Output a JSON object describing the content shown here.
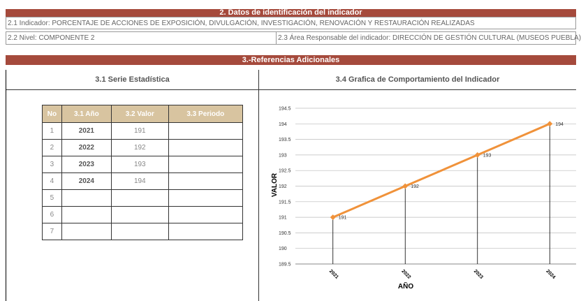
{
  "section2": {
    "title": "2. Datos de identificación del indicador",
    "indicator": "2.1 Indicador: PORCENTAJE DE ACCIONES DE EXPOSICIÓN, DIVULGACIÓN, INVESTIGACIÓN, RENOVACIÓN Y RESTAURACIÓN REALIZADAS",
    "level": "2.2 Nivel: COMPONENTE 2",
    "area": "2.3 Área Responsable del indicador: DIRECCIÓN DE GESTIÓN CULTURAL (MUSEOS PUEBLA)"
  },
  "section3": {
    "title": "3.-Referencias Adicionales",
    "left_title": "3.1 Serie Estadística",
    "right_title": "3.4 Grafica de Comportamiento del Indicador"
  },
  "table": {
    "headers": [
      "No",
      "3.1 Año",
      "3.2 Valor",
      "3.3 Periodo"
    ],
    "rows": [
      [
        "1",
        "2021",
        "191"
      ],
      [
        "2",
        "2022",
        "192"
      ],
      [
        "3",
        "2023",
        "193"
      ],
      [
        "4",
        "2024",
        "194"
      ],
      [
        "5"
      ],
      [
        "6"
      ],
      [
        "7"
      ]
    ]
  },
  "chart": {
    "type": "line",
    "x_label": "AÑO",
    "y_label": "VALOR",
    "categories": [
      "2021",
      "2022",
      "2023",
      "2024"
    ],
    "series": [
      {
        "color": "#f0923a",
        "values": [
          191,
          192,
          193,
          194
        ]
      }
    ],
    "ylim": [
      189.5,
      194.5
    ],
    "yticks": [
      189.5,
      190,
      190.5,
      191,
      191.5,
      192,
      192.5,
      193,
      193.5,
      194,
      194.5
    ],
    "grid": true
  }
}
